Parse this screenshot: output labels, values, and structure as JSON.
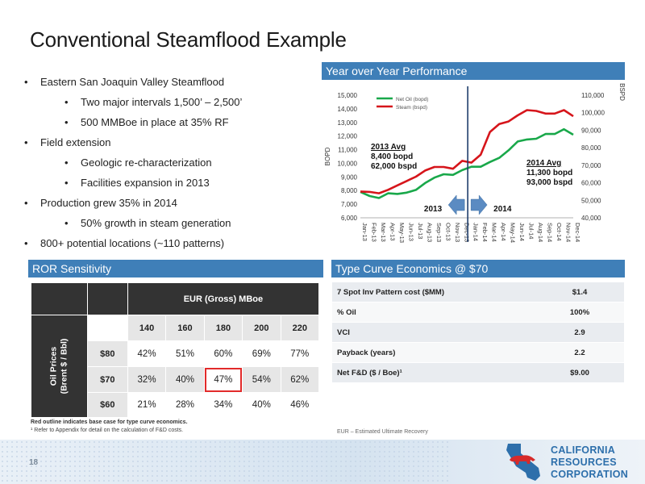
{
  "title": "Conventional Steamflood Example",
  "bullets": [
    {
      "level": 1,
      "text": "Eastern San Joaquin Valley Steamflood"
    },
    {
      "level": 2,
      "text": "Two major intervals 1,500’ – 2,500’"
    },
    {
      "level": 2,
      "text": "500 MMBoe in place at 35% RF"
    },
    {
      "level": 1,
      "text": "Field extension"
    },
    {
      "level": 2,
      "text": "Geologic re-characterization"
    },
    {
      "level": 2,
      "text": "Facilities expansion in 2013"
    },
    {
      "level": 1,
      "text": "Production grew 35% in 2014"
    },
    {
      "level": 2,
      "text": "50% growth in steam generation"
    },
    {
      "level": 1,
      "text": "800+ potential locations (~110 patterns)"
    }
  ],
  "perf_panel": {
    "header": "Year over Year Performance"
  },
  "chart_data": {
    "type": "line",
    "title": "Year over Year Performance",
    "x": [
      "Jan-13",
      "Feb-13",
      "Mar-13",
      "Apr-13",
      "May-13",
      "Jun-13",
      "Jul-13",
      "Aug-13",
      "Sep-13",
      "Oct-13",
      "Nov-13",
      "Dec-13",
      "Jan-14",
      "Feb-14",
      "Mar-14",
      "Apr-14",
      "May-14",
      "Jun-14",
      "Jul-14",
      "Aug-14",
      "Sep-14",
      "Oct-14",
      "Nov-14",
      "Dec-14"
    ],
    "ylabel": "BOPD",
    "y2label": "BSPD",
    "ylim": [
      6000,
      15000
    ],
    "y2lim": [
      40000,
      110000
    ],
    "yticks": [
      "6,000",
      "7,000",
      "8,000",
      "9,000",
      "10,000",
      "11,000",
      "12,000",
      "13,000",
      "14,000",
      "15,000"
    ],
    "y2ticks": [
      "40,000",
      "50,000",
      "60,000",
      "70,000",
      "80,000",
      "90,000",
      "100,000",
      "110,000"
    ],
    "series": [
      {
        "name": "Net Oil (bopd)",
        "axis": "left",
        "color": "#19a84a",
        "values": [
          7900,
          7600,
          7450,
          7800,
          7750,
          7850,
          8050,
          8550,
          8950,
          9200,
          9150,
          9500,
          9750,
          9750,
          10100,
          10400,
          10950,
          11600,
          11750,
          11800,
          12150,
          12150,
          12500,
          12100
        ]
      },
      {
        "name": "Steam (bspd)",
        "axis": "right",
        "color": "#d6151b",
        "values": [
          55000,
          54800,
          54000,
          56000,
          58500,
          61000,
          63500,
          67000,
          69000,
          69000,
          68000,
          72500,
          71500,
          76000,
          89000,
          93500,
          95000,
          98500,
          101500,
          101000,
          99500,
          99500,
          101500,
          98000
        ]
      }
    ],
    "legend": "top-left",
    "annotations": {
      "avg2013": [
        "2013 Avg",
        "8,400 bopd",
        "62,000 bspd"
      ],
      "avg2014": [
        "2014 Avg",
        "11,300 bopd",
        "93,000 bspd"
      ],
      "label2013": "2013",
      "label2014": "2014"
    }
  },
  "ror_panel": {
    "header": "ROR Sensitivity",
    "eur_label": "EUR (Gross) MBoe",
    "side_label_1": "Oil Prices",
    "side_label_2": "(Brent $ / Bbl)",
    "columns": [
      "140",
      "160",
      "180",
      "200",
      "220"
    ],
    "rows": [
      {
        "price": "$80",
        "values": [
          "42%",
          "51%",
          "60%",
          "69%",
          "77%"
        ]
      },
      {
        "price": "$70",
        "values": [
          "32%",
          "40%",
          "47%",
          "54%",
          "62%"
        ]
      },
      {
        "price": "$60",
        "values": [
          "21%",
          "28%",
          "34%",
          "40%",
          "46%"
        ]
      }
    ],
    "note_bold": "Red outline indicates base case for type curve economics.",
    "note": "¹ Refer to Appendix for detail on the calculation of F&D costs."
  },
  "type_panel": {
    "header": "Type Curve Economics @ $70",
    "rows": [
      {
        "label": "7 Spot Inv Pattern cost ($MM)",
        "value": "$1.4"
      },
      {
        "label": "% Oil",
        "value": "100%"
      },
      {
        "label": "VCI",
        "value": "2.9"
      },
      {
        "label": "Payback (years)",
        "value": "2.2"
      },
      {
        "label": "Net F&D ($ / Boe)¹",
        "value": "$9.00"
      }
    ],
    "footnote": "EUR – Estimated Ultimate Recovery"
  },
  "footer": {
    "page_number": "18",
    "logo_lines": [
      "CALIFORNIA",
      "RESOURCES",
      "CORPORATION"
    ]
  },
  "colors": {
    "panel_header": "#3f7fb8",
    "oil": "#19a84a",
    "steam": "#d6151b",
    "logo": "#2d6fab",
    "highlight": "#e22b2b"
  }
}
